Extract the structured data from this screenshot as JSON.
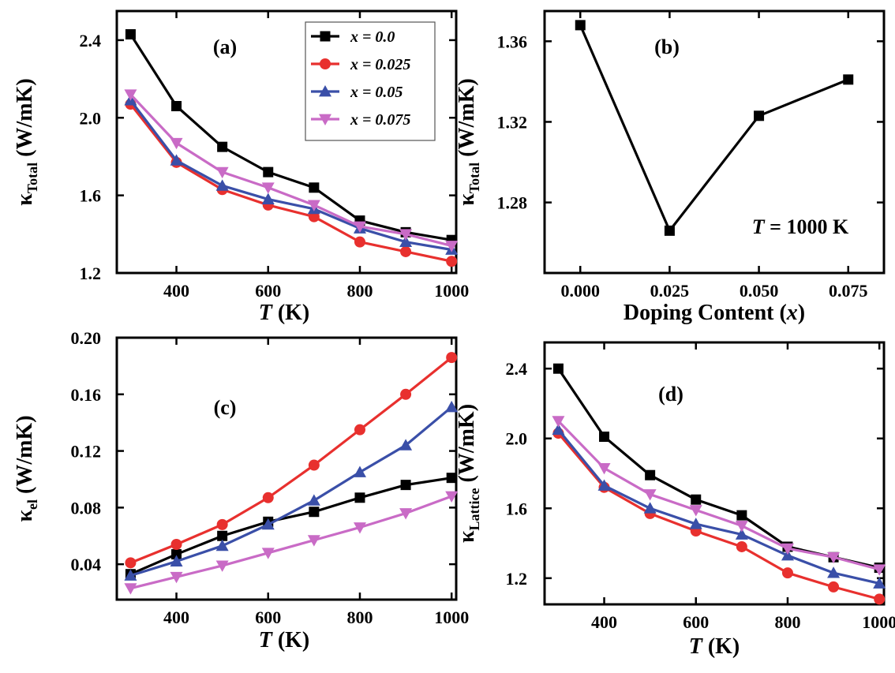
{
  "colors": {
    "x0": "#000000",
    "x025": "#e8302e",
    "x05": "#3a4fa8",
    "x075": "#c96bc6"
  },
  "chart_data": [
    {
      "id": "a",
      "type": "line",
      "panel_label": "(a)",
      "ylabel_main": "κ",
      "ylabel_sub": "Total",
      "ylabel_unit": " (W/mK)",
      "xlabel_var": "T",
      "xlabel_unit": " (K)",
      "xlim": [
        270,
        1010
      ],
      "ylim": [
        1.2,
        2.55
      ],
      "xticks": [
        400,
        600,
        800,
        1000
      ],
      "xtick_labels": [
        "400",
        "600",
        "800",
        "1000"
      ],
      "yticks": [
        1.2,
        1.6,
        2.0,
        2.4
      ],
      "ytick_labels": [
        "1.2",
        "1.6",
        "2.0",
        "2.4"
      ],
      "x": [
        300,
        400,
        500,
        600,
        700,
        800,
        900,
        1000
      ],
      "legend": {
        "placement": "top-right"
      },
      "series": [
        {
          "name": "x = 0.0",
          "color": "#000000",
          "marker": "square",
          "values": [
            2.43,
            2.06,
            1.85,
            1.72,
            1.64,
            1.47,
            1.41,
            1.37
          ]
        },
        {
          "name": "x = 0.025",
          "color": "#e8302e",
          "marker": "circle",
          "values": [
            2.07,
            1.77,
            1.63,
            1.55,
            1.49,
            1.36,
            1.31,
            1.26
          ]
        },
        {
          "name": "x = 0.05",
          "color": "#3a4fa8",
          "marker": "triangle-up",
          "values": [
            2.09,
            1.78,
            1.65,
            1.58,
            1.53,
            1.43,
            1.36,
            1.32
          ]
        },
        {
          "name": "x = 0.075",
          "color": "#c96bc6",
          "marker": "triangle-down",
          "values": [
            2.12,
            1.87,
            1.72,
            1.64,
            1.55,
            1.44,
            1.4,
            1.34
          ]
        }
      ]
    },
    {
      "id": "b",
      "type": "line",
      "panel_label": "(b)",
      "ylabel_main": "κ",
      "ylabel_sub": "Total",
      "ylabel_unit": " (W/mK)",
      "xlabel_text": "Doping Content (",
      "xlabel_var": "x",
      "xlabel_end": ")",
      "annotation": "= 1000 K",
      "annotation_var": "T",
      "xlim": [
        -0.01,
        0.085
      ],
      "ylim": [
        1.245,
        1.375
      ],
      "xticks": [
        0.0,
        0.025,
        0.05,
        0.075
      ],
      "xtick_labels": [
        "0.000",
        "0.025",
        "0.050",
        "0.075"
      ],
      "yticks": [
        1.28,
        1.32,
        1.36
      ],
      "ytick_labels": [
        "1.28",
        "1.32",
        "1.36"
      ],
      "x": [
        0.0,
        0.025,
        0.05,
        0.075
      ],
      "series": [
        {
          "color": "#000000",
          "marker": "square",
          "values": [
            1.368,
            1.266,
            1.323,
            1.341
          ]
        }
      ]
    },
    {
      "id": "c",
      "type": "line",
      "panel_label": "(c)",
      "ylabel_main": "κ",
      "ylabel_sub": "el",
      "ylabel_unit": " (W/mK)",
      "xlabel_var": "T",
      "xlabel_unit": " (K)",
      "xlim": [
        270,
        1010
      ],
      "ylim": [
        0.015,
        0.2
      ],
      "xticks": [
        400,
        600,
        800,
        1000
      ],
      "xtick_labels": [
        "400",
        "600",
        "800",
        "1000"
      ],
      "yticks": [
        0.04,
        0.08,
        0.12,
        0.16,
        0.2
      ],
      "ytick_labels": [
        "0.04",
        "0.08",
        "0.12",
        "0.16",
        "0.20"
      ],
      "x": [
        300,
        400,
        500,
        600,
        700,
        800,
        900,
        1000
      ],
      "series": [
        {
          "color": "#000000",
          "marker": "square",
          "values": [
            0.033,
            0.047,
            0.06,
            0.07,
            0.077,
            0.087,
            0.096,
            0.101
          ]
        },
        {
          "color": "#e8302e",
          "marker": "circle",
          "values": [
            0.041,
            0.054,
            0.068,
            0.087,
            0.11,
            0.135,
            0.16,
            0.186
          ]
        },
        {
          "color": "#3a4fa8",
          "marker": "triangle-up",
          "values": [
            0.032,
            0.042,
            0.053,
            0.068,
            0.085,
            0.105,
            0.124,
            0.151
          ]
        },
        {
          "color": "#c96bc6",
          "marker": "triangle-down",
          "values": [
            0.023,
            0.031,
            0.039,
            0.048,
            0.057,
            0.066,
            0.076,
            0.088
          ]
        }
      ]
    },
    {
      "id": "d",
      "type": "line",
      "panel_label": "(d)",
      "ylabel_main": "κ",
      "ylabel_sub": "Lattice",
      "ylabel_unit": " (W/mK)",
      "xlabel_var": "T",
      "xlabel_unit": " (K)",
      "xlim": [
        270,
        1010
      ],
      "ylim": [
        1.05,
        2.55
      ],
      "xticks": [
        400,
        600,
        800,
        1000
      ],
      "xtick_labels": [
        "400",
        "600",
        "800",
        "1000"
      ],
      "yticks": [
        1.2,
        1.6,
        2.0,
        2.4
      ],
      "ytick_labels": [
        "1.2",
        "1.6",
        "2.0",
        "2.4"
      ],
      "x": [
        300,
        400,
        500,
        600,
        700,
        800,
        900,
        1000
      ],
      "series": [
        {
          "color": "#000000",
          "marker": "square",
          "values": [
            2.4,
            2.01,
            1.79,
            1.65,
            1.56,
            1.38,
            1.32,
            1.26
          ]
        },
        {
          "color": "#e8302e",
          "marker": "circle",
          "values": [
            2.03,
            1.72,
            1.57,
            1.47,
            1.38,
            1.23,
            1.15,
            1.08
          ]
        },
        {
          "color": "#3a4fa8",
          "marker": "triangle-up",
          "values": [
            2.05,
            1.73,
            1.6,
            1.51,
            1.45,
            1.33,
            1.23,
            1.17
          ]
        },
        {
          "color": "#c96bc6",
          "marker": "triangle-down",
          "values": [
            2.1,
            1.83,
            1.68,
            1.59,
            1.5,
            1.37,
            1.32,
            1.25
          ]
        }
      ]
    }
  ]
}
